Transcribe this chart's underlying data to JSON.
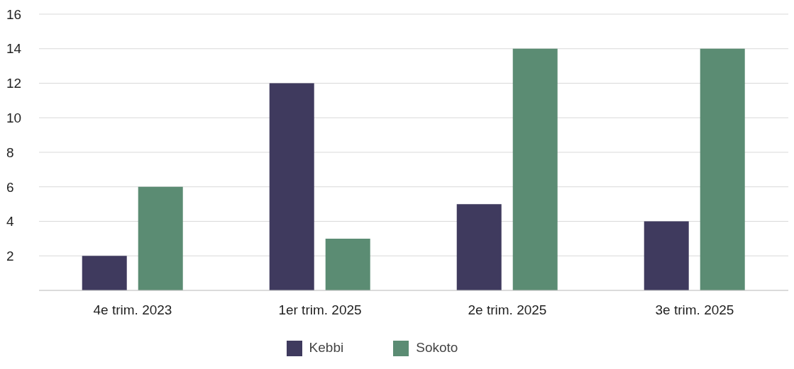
{
  "chart_data": {
    "type": "bar",
    "categories": [
      "4e trim. 2023",
      "1er trim. 2025",
      "2e trim. 2025",
      "3e trim. 2025"
    ],
    "series": [
      {
        "name": "Kebbi",
        "color": "#3f3a5e",
        "values": [
          2,
          12,
          5,
          4
        ]
      },
      {
        "name": "Sokoto",
        "color": "#5b8c73",
        "values": [
          6,
          3,
          14,
          14
        ]
      }
    ],
    "ylim": [
      0,
      16
    ],
    "yticks": [
      {
        "value": 0,
        "label": null
      },
      2,
      4,
      6,
      8,
      10,
      12,
      14,
      16
    ],
    "grid": "y",
    "legend": "bottom"
  }
}
